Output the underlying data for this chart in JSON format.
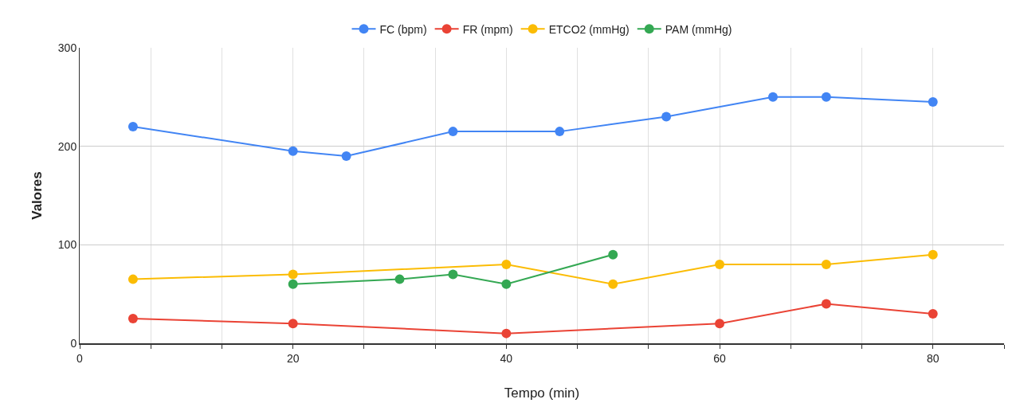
{
  "chart_data": {
    "type": "line",
    "xlabel": "Tempo (min)",
    "ylabel": "Valores",
    "xlim": [
      0,
      86.67
    ],
    "xticks": [
      0,
      {
        "value": 6.67,
        "label": null
      },
      {
        "value": 13.33,
        "label": null
      },
      20,
      {
        "value": 26.67,
        "label": null
      },
      {
        "value": 33.33,
        "label": null
      },
      40,
      {
        "value": 46.67,
        "label": null
      },
      {
        "value": 53.33,
        "label": null
      },
      60,
      {
        "value": 66.67,
        "label": null
      },
      {
        "value": 73.33,
        "label": null
      },
      80,
      {
        "value": 86.67,
        "label": null
      }
    ],
    "ylim": [
      0,
      300
    ],
    "yticks": [
      0,
      100,
      200,
      300
    ],
    "grid": true,
    "legend": "top",
    "marker": "circle",
    "line_style": "solid",
    "series": [
      {
        "name": "FC (bpm)",
        "color": "#4285f4",
        "x": [
          5,
          20,
          25,
          35,
          45,
          55,
          65,
          70,
          80
        ],
        "values": [
          220,
          195,
          190,
          215,
          215,
          230,
          250,
          250,
          245
        ]
      },
      {
        "name": "FR (mpm)",
        "color": "#ea4335",
        "x": [
          5,
          20,
          40,
          60,
          70,
          80
        ],
        "values": [
          25,
          20,
          10,
          20,
          40,
          30
        ]
      },
      {
        "name": "ETCO2 (mmHg)",
        "color": "#fbbc04",
        "x": [
          5,
          20,
          40,
          50,
          60,
          70,
          80
        ],
        "values": [
          65,
          70,
          80,
          60,
          80,
          80,
          90
        ]
      },
      {
        "name": "PAM (mmHg)",
        "color": "#34a853",
        "x": [
          20,
          30,
          35,
          40,
          50
        ],
        "values": [
          60,
          65,
          70,
          60,
          90
        ]
      }
    ]
  }
}
